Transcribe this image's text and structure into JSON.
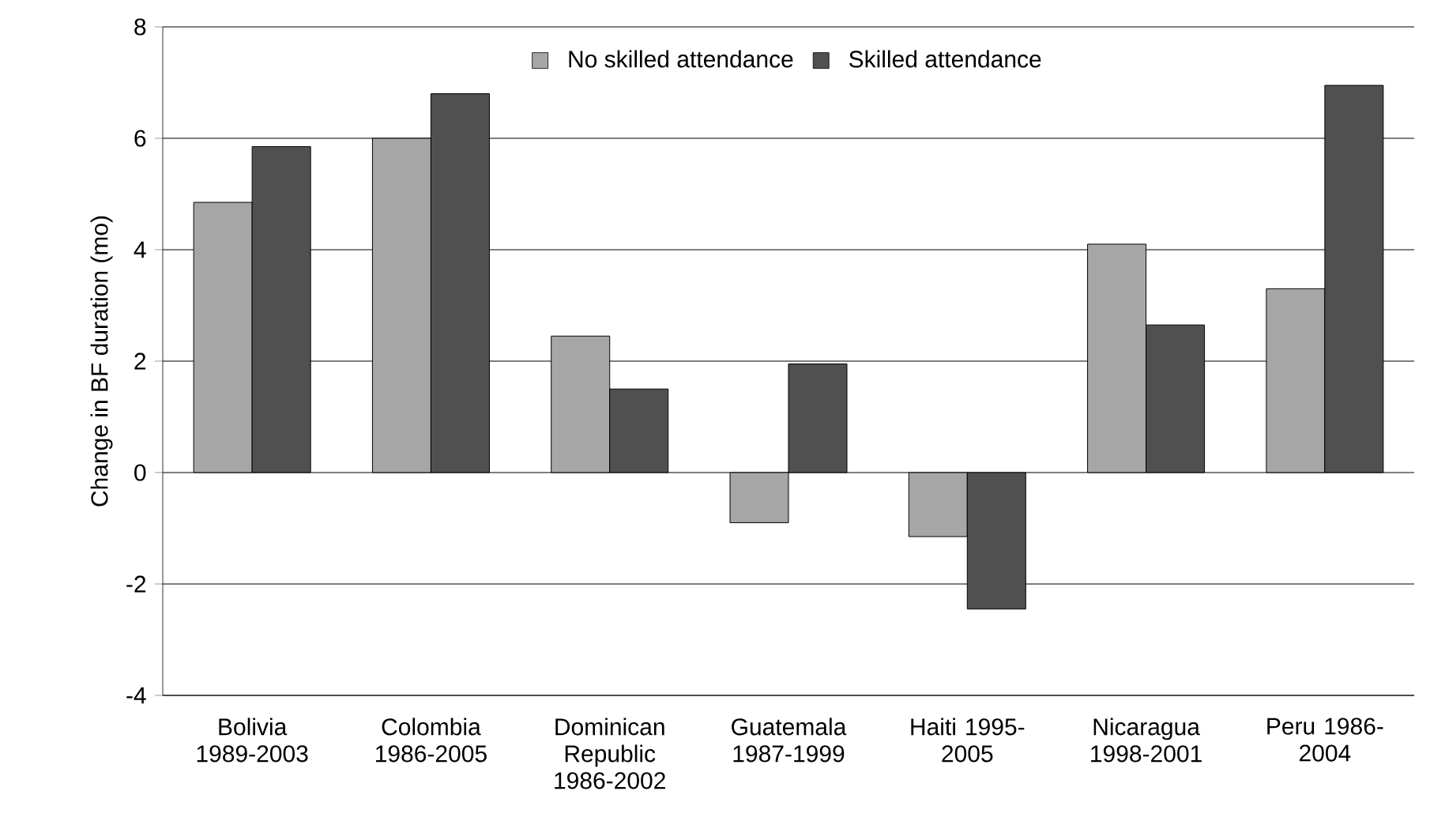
{
  "chart_data": {
    "type": "bar",
    "ylabel": "Change in BF duration (mo)",
    "categories": [
      "Bolivia 1989-2003",
      "Colombia 1986-2005",
      "Dominican Republic 1986-2002",
      "Guatemala 1987-1999",
      "Haiti 1995-2005",
      "Nicaragua 1998-2001",
      "Peru 1986-2004"
    ],
    "series": [
      {
        "name": "No skilled attendance",
        "color": "#a6a6a6",
        "values": [
          4.85,
          6.0,
          2.45,
          -0.9,
          -1.15,
          4.1,
          3.3
        ]
      },
      {
        "name": "Skilled attendance",
        "color": "#505050",
        "values": [
          5.85,
          6.8,
          1.5,
          1.95,
          -2.45,
          2.65,
          6.95
        ]
      }
    ],
    "ylim": [
      -4,
      8
    ],
    "yticks": [
      -4,
      -2,
      0,
      2,
      4,
      6,
      8
    ],
    "grid": "y",
    "legend": "top"
  }
}
